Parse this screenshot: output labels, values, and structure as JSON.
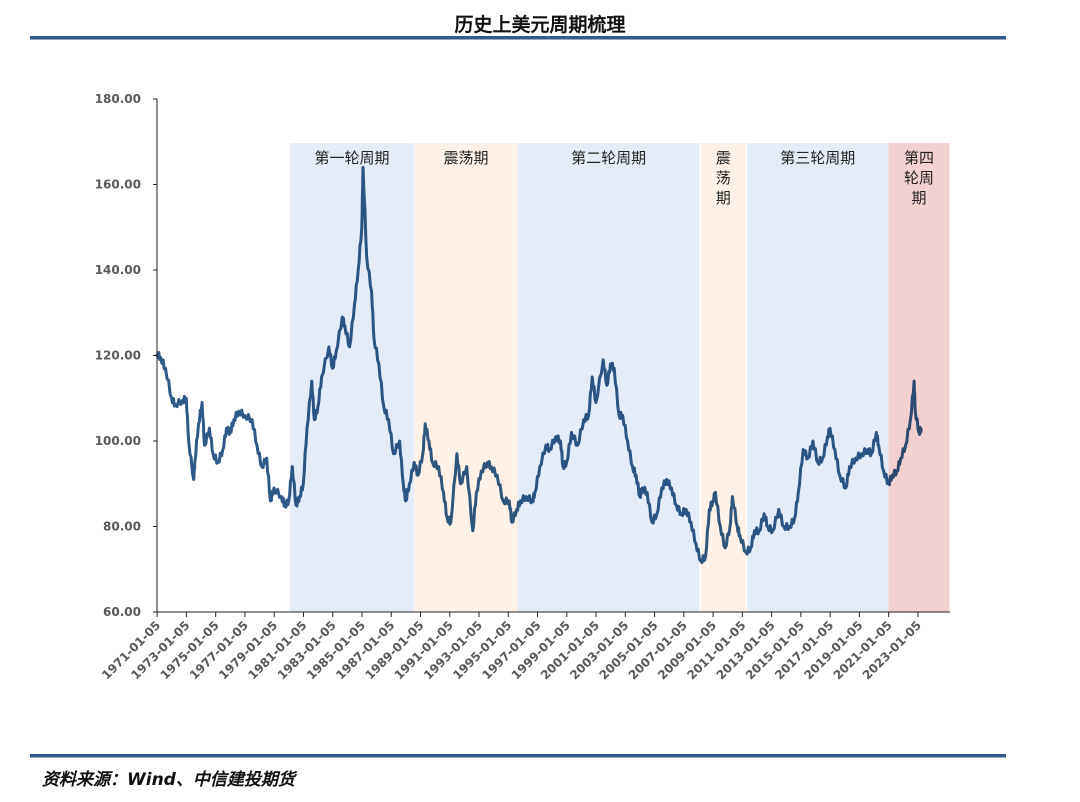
{
  "title": "历史上美元周期梳理",
  "source": "资料来源：Wind、中信建投期货",
  "chart_data": {
    "type": "line",
    "title": "",
    "xlabel": "",
    "ylabel": "",
    "ylim": [
      60,
      180
    ],
    "yticks": [
      "60.00",
      "80.00",
      "100.00",
      "120.00",
      "140.00",
      "160.00",
      "180.00"
    ],
    "xticks": [
      "1971-01-05",
      "1973-01-05",
      "1975-01-05",
      "1977-01-05",
      "1979-01-05",
      "1981-01-05",
      "1983-01-05",
      "1985-01-05",
      "1987-01-05",
      "1989-01-05",
      "1991-01-05",
      "1993-01-05",
      "1995-01-05",
      "1997-01-05",
      "1999-01-05",
      "2001-01-05",
      "2003-01-05",
      "2005-01-05",
      "2007-01-05",
      "2009-01-05",
      "2011-01-05",
      "2013-01-05",
      "2015-01-05",
      "2017-01-05",
      "2019-01-05",
      "2021-01-05",
      "2023-01-05"
    ],
    "grid": false,
    "line_color": "#2e5a87",
    "bands": [
      {
        "label": "第一轮周期",
        "start": "1980-02",
        "end": "1988-08",
        "color": "#cddff0",
        "vertical": false
      },
      {
        "label": "震荡期",
        "start": "1988-08",
        "end": "1995-09",
        "color": "#fbe5d6",
        "vertical": false
      },
      {
        "label": "第二轮周期",
        "start": "1995-09",
        "end": "2008-02",
        "color": "#cddff0",
        "vertical": false
      },
      {
        "label": "震荡期",
        "start": "2008-03",
        "end": "2011-04",
        "color": "#fbe5d6",
        "vertical": true
      },
      {
        "label": "第三轮周期",
        "start": "2011-05",
        "end": "2021-01",
        "color": "#cddff0",
        "vertical": false
      },
      {
        "label": "第四轮周期",
        "start": "2021-01",
        "end": "2025-03",
        "color": "#eaacac",
        "vertical": true,
        "wrap": 2
      }
    ],
    "series": [
      {
        "points": [
          [
            "1971-01",
            120.5
          ],
          [
            "1971-04",
            119.5
          ],
          [
            "1971-08",
            117
          ],
          [
            "1972-01",
            110
          ],
          [
            "1972-04",
            108.5
          ],
          [
            "1972-10",
            109.5
          ],
          [
            "1973-01",
            110
          ],
          [
            "1973-03",
            100
          ],
          [
            "1973-07",
            91
          ],
          [
            "1973-08",
            95
          ],
          [
            "1973-11",
            104
          ],
          [
            "1974-02",
            109
          ],
          [
            "1974-04",
            99
          ],
          [
            "1974-08",
            103
          ],
          [
            "1974-11",
            97
          ],
          [
            "1975-03",
            95
          ],
          [
            "1975-07",
            98
          ],
          [
            "1975-10",
            103
          ],
          [
            "1976-01",
            102
          ],
          [
            "1976-04",
            105
          ],
          [
            "1976-08",
            107
          ],
          [
            "1977-01",
            106
          ],
          [
            "1977-07",
            105
          ],
          [
            "1977-11",
            99
          ],
          [
            "1978-03",
            94
          ],
          [
            "1978-07",
            96
          ],
          [
            "1978-10",
            86
          ],
          [
            "1979-01",
            89
          ],
          [
            "1979-07",
            87
          ],
          [
            "1979-10",
            85
          ],
          [
            "1980-01",
            86
          ],
          [
            "1980-04",
            94
          ],
          [
            "1980-07",
            85
          ],
          [
            "1980-10",
            87
          ],
          [
            "1981-01",
            90
          ],
          [
            "1981-04",
            103
          ],
          [
            "1981-08",
            114
          ],
          [
            "1981-10",
            105
          ],
          [
            "1982-01",
            108
          ],
          [
            "1982-04",
            115
          ],
          [
            "1982-10",
            122
          ],
          [
            "1983-01",
            117
          ],
          [
            "1983-04",
            121
          ],
          [
            "1983-09",
            129
          ],
          [
            "1983-11",
            127
          ],
          [
            "1984-03",
            122
          ],
          [
            "1984-07",
            132
          ],
          [
            "1984-10",
            140
          ],
          [
            "1985-01",
            150
          ],
          [
            "1985-02",
            164
          ],
          [
            "1985-05",
            143
          ],
          [
            "1985-09",
            135
          ],
          [
            "1985-11",
            124
          ],
          [
            "1986-03",
            118
          ],
          [
            "1986-07",
            108
          ],
          [
            "1986-11",
            105
          ],
          [
            "1987-03",
            97
          ],
          [
            "1987-08",
            100
          ],
          [
            "1987-11",
            90
          ],
          [
            "1988-01",
            86
          ],
          [
            "1988-04",
            90
          ],
          [
            "1988-08",
            95
          ],
          [
            "1988-11",
            92
          ],
          [
            "1989-03",
            97
          ],
          [
            "1989-05",
            104
          ],
          [
            "1989-08",
            100
          ],
          [
            "1989-11",
            95
          ],
          [
            "1990-04",
            94
          ],
          [
            "1990-08",
            88
          ],
          [
            "1990-11",
            82
          ],
          [
            "1991-02",
            81
          ],
          [
            "1991-07",
            97
          ],
          [
            "1991-10",
            90
          ],
          [
            "1992-03",
            94
          ],
          [
            "1992-08",
            79
          ],
          [
            "1992-11",
            88
          ],
          [
            "1993-03",
            93
          ],
          [
            "1993-08",
            95
          ],
          [
            "1993-11",
            94
          ],
          [
            "1994-04",
            92
          ],
          [
            "1994-09",
            86
          ],
          [
            "1995-02",
            86
          ],
          [
            "1995-04",
            81
          ],
          [
            "1995-08",
            84
          ],
          [
            "1995-11",
            86
          ],
          [
            "1996-04",
            87
          ],
          [
            "1996-09",
            86
          ],
          [
            "1996-11",
            88
          ],
          [
            "1997-03",
            94
          ],
          [
            "1997-08",
            99
          ],
          [
            "1997-11",
            98
          ],
          [
            "1998-04",
            101
          ],
          [
            "1998-08",
            100
          ],
          [
            "1998-10",
            94
          ],
          [
            "1999-01",
            95
          ],
          [
            "1999-05",
            102
          ],
          [
            "1999-10",
            99
          ],
          [
            "2000-03",
            105
          ],
          [
            "2000-07",
            106
          ],
          [
            "2000-10",
            115
          ],
          [
            "2001-01",
            109
          ],
          [
            "2001-07",
            119
          ],
          [
            "2001-10",
            113
          ],
          [
            "2002-01",
            118
          ],
          [
            "2002-04",
            117
          ],
          [
            "2002-08",
            106
          ],
          [
            "2002-11",
            106
          ],
          [
            "2003-03",
            100
          ],
          [
            "2003-07",
            94
          ],
          [
            "2003-10",
            92
          ],
          [
            "2004-01",
            87
          ],
          [
            "2004-03",
            89
          ],
          [
            "2004-07",
            88
          ],
          [
            "2004-11",
            81
          ],
          [
            "2005-03",
            83
          ],
          [
            "2005-07",
            89
          ],
          [
            "2005-11",
            91
          ],
          [
            "2006-03",
            89
          ],
          [
            "2006-07",
            85
          ],
          [
            "2006-11",
            83
          ],
          [
            "2007-03",
            84
          ],
          [
            "2007-07",
            81
          ],
          [
            "2007-11",
            76
          ],
          [
            "2008-03",
            72
          ],
          [
            "2008-07",
            73
          ],
          [
            "2008-10",
            84
          ],
          [
            "2009-01",
            86
          ],
          [
            "2009-03",
            88
          ],
          [
            "2009-07",
            80
          ],
          [
            "2009-11",
            75
          ],
          [
            "2010-03",
            80
          ],
          [
            "2010-05",
            87
          ],
          [
            "2010-09",
            80
          ],
          [
            "2010-11",
            78
          ],
          [
            "2011-04",
            74
          ],
          [
            "2011-08",
            75
          ],
          [
            "2011-11",
            79
          ],
          [
            "2012-03",
            79
          ],
          [
            "2012-07",
            83
          ],
          [
            "2012-10",
            80
          ],
          [
            "2013-02",
            79
          ],
          [
            "2013-07",
            84
          ],
          [
            "2013-11",
            80
          ],
          [
            "2014-04",
            80
          ],
          [
            "2014-08",
            82
          ],
          [
            "2014-11",
            88
          ],
          [
            "2015-03",
            98
          ],
          [
            "2015-07",
            96
          ],
          [
            "2015-11",
            100
          ],
          [
            "2016-03",
            95
          ],
          [
            "2016-07",
            96
          ],
          [
            "2016-11",
            101
          ],
          [
            "2017-01",
            103
          ],
          [
            "2017-05",
            98
          ],
          [
            "2017-09",
            92
          ],
          [
            "2018-02",
            89
          ],
          [
            "2018-05",
            94
          ],
          [
            "2018-10",
            96
          ],
          [
            "2019-03",
            97
          ],
          [
            "2019-08",
            98
          ],
          [
            "2019-11",
            97
          ],
          [
            "2020-03",
            102
          ],
          [
            "2020-05",
            99
          ],
          [
            "2020-09",
            93
          ],
          [
            "2021-01",
            90
          ],
          [
            "2021-04",
            92
          ],
          [
            "2021-08",
            93
          ],
          [
            "2021-11",
            96
          ],
          [
            "2022-03",
            99
          ],
          [
            "2022-07",
            105
          ],
          [
            "2022-10",
            114
          ],
          [
            "2022-11",
            107
          ],
          [
            "2023-02",
            102
          ],
          [
            "2023-04",
            103
          ]
        ]
      }
    ]
  }
}
